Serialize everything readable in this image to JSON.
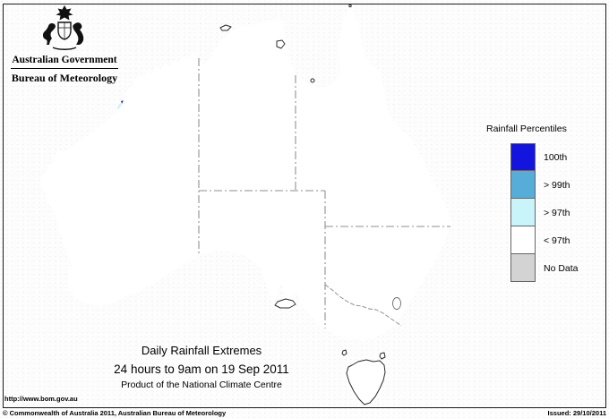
{
  "header": {
    "government": "Australian Government",
    "bureau": "Bureau of Meteorology"
  },
  "legend": {
    "title": "Rainfall Percentiles",
    "items": [
      {
        "label": "100th",
        "color": "#1414DF"
      },
      {
        "label": "> 99th",
        "color": "#56AED8"
      },
      {
        "label": "> 97th",
        "color": "#C9F4FA"
      },
      {
        "label": "< 97th",
        "color": "#FFFFFF"
      },
      {
        "label": "No Data",
        "color": "#D3D3D3"
      }
    ]
  },
  "title_block": {
    "title": "Daily Rainfall Extremes",
    "subtitle": "24 hours to 9am on 19 Sep 2011",
    "product": "Product of the National Climate Centre"
  },
  "footer": {
    "url": "http://www.bom.gov.au",
    "copyright": "© Commonwealth of Australia 2011, Australian Bureau of Meteorology",
    "issued": "Issued: 29/10/2011"
  },
  "colors": {
    "p100": "#1414DF",
    "p99": "#56AED8",
    "p97": "#C9F4FA",
    "lt97": "#FFFFFF",
    "no_data": "#D3D3D3",
    "coastline": "#2B2B2B",
    "state_border": "#8F8F8F"
  },
  "map": {
    "region": "Australia"
  }
}
